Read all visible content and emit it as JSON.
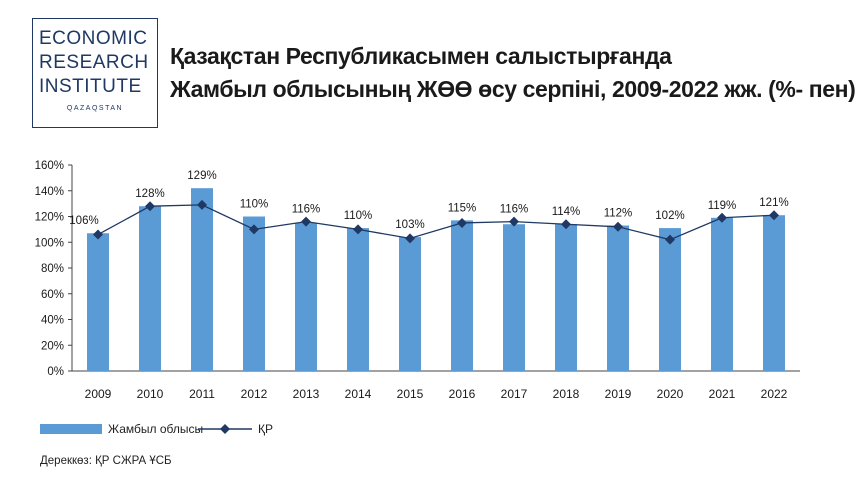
{
  "logo": {
    "line1": "ECONOMIC",
    "line2": "RESEARCH",
    "line3": "INSTITUTE",
    "sub": "QAZAQSTAN"
  },
  "title": {
    "line1": "Қазақстан Республикасымен салыстырғанда",
    "line2": "Жамбыл облысының ЖӨӨ өсу серпіні, 2009-2022 жж. (%- пен)"
  },
  "legend": {
    "bar_label": "Жамбыл облысы",
    "line_label": "ҚР"
  },
  "source": "Дереккөз: ҚР СЖРА ҰСБ",
  "colors": {
    "bar": "#5b9bd5",
    "line": "#1f3864",
    "text": "#1a1a1a"
  },
  "chart_data": {
    "type": "bar",
    "categories": [
      "2009",
      "2010",
      "2011",
      "2012",
      "2013",
      "2014",
      "2015",
      "2016",
      "2017",
      "2018",
      "2019",
      "2020",
      "2021",
      "2022"
    ],
    "series": [
      {
        "name": "Жамбыл облысы",
        "type": "bar",
        "values": [
          107,
          128,
          142,
          120,
          115,
          111,
          104,
          117,
          114,
          114,
          113,
          111,
          119,
          121
        ]
      },
      {
        "name": "ҚР",
        "type": "line",
        "values": [
          106,
          128,
          129,
          110,
          116,
          110,
          103,
          115,
          116,
          114,
          112,
          102,
          119,
          121
        ],
        "data_labels": [
          "106%",
          "128%",
          "129%",
          "110%",
          "116%",
          "110%",
          "103%",
          "115%",
          "116%",
          "114%",
          "112%",
          "102%",
          "119%",
          "121%"
        ]
      }
    ],
    "y_ticks": [
      "0%",
      "20%",
      "40%",
      "60%",
      "80%",
      "100%",
      "120%",
      "140%",
      "160%"
    ],
    "ylim": [
      0,
      160
    ],
    "grid": false,
    "legend_position": "bottom-left"
  }
}
